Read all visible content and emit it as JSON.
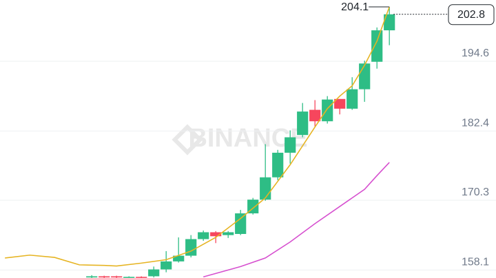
{
  "chart_data": {
    "type": "candlestick",
    "watermark": "BINANCE",
    "up_color": "#2ebd85",
    "down_color": "#f6465d",
    "xlim": [
      -7.4,
      32.6
    ],
    "ylim": [
      156.7,
      205.3
    ],
    "yticks": [
      158.1,
      170.3,
      182.4,
      194.6
    ],
    "grid": true,
    "candles": {
      "x": [
        0,
        1,
        2,
        3,
        4,
        5,
        6,
        7,
        8,
        9,
        10,
        11,
        12,
        13,
        14,
        15,
        16,
        17,
        18,
        19,
        20,
        21,
        22,
        23,
        24
      ],
      "open": [
        156.8,
        157.0,
        157.0,
        156.9,
        156.9,
        157.0,
        158.2,
        159.6,
        160.6,
        163.5,
        164.7,
        164.2,
        164.4,
        168.0,
        170.4,
        174.3,
        178.6,
        181.7,
        186.1,
        184.1,
        188.0,
        186.3,
        189.7,
        194.5,
        200.0
      ],
      "high": [
        157.2,
        157.1,
        157.1,
        157.0,
        157.0,
        158.7,
        161.4,
        163.8,
        164.2,
        165.0,
        164.9,
        164.9,
        168.6,
        170.7,
        180.1,
        179.1,
        182.5,
        187.3,
        187.8,
        188.5,
        188.0,
        191.8,
        194.7,
        200.5,
        204.1
      ],
      "low": [
        156.7,
        156.7,
        156.7,
        156.8,
        156.7,
        156.8,
        157.7,
        159.4,
        160.3,
        163.2,
        162.8,
        163.7,
        164.2,
        167.8,
        170.2,
        173.8,
        176.7,
        181.3,
        183.2,
        183.7,
        185.3,
        186.1,
        187.5,
        193.3,
        197.4
      ],
      "close": [
        157.0,
        156.8,
        156.8,
        156.9,
        156.8,
        158.2,
        159.6,
        160.6,
        163.5,
        164.7,
        164.0,
        164.7,
        168.0,
        170.4,
        174.3,
        178.6,
        181.3,
        185.8,
        184.1,
        187.9,
        186.3,
        189.7,
        194.2,
        200.0,
        202.8
      ]
    },
    "series": [
      {
        "color": "#e6b422",
        "x": [
          -7,
          -5,
          -3,
          -1,
          1,
          2,
          4,
          6,
          8,
          10,
          12,
          14,
          16,
          18,
          19,
          20,
          21,
          22,
          23,
          24
        ],
        "values": [
          160.2,
          160.7,
          160.3,
          159.0,
          158.9,
          158.8,
          159.3,
          159.9,
          161.4,
          163.8,
          167.1,
          170.7,
          176.5,
          183.1,
          186.3,
          188.5,
          190.3,
          193.9,
          198.1,
          204.1
        ]
      },
      {
        "color": "#d64fcf",
        "x": [
          9,
          10,
          12,
          14,
          16,
          18,
          20,
          22,
          23,
          24
        ],
        "values": [
          156.9,
          157.5,
          158.7,
          160.2,
          163.0,
          166.2,
          169.2,
          172.2,
          174.6,
          176.9
        ]
      }
    ]
  }
}
